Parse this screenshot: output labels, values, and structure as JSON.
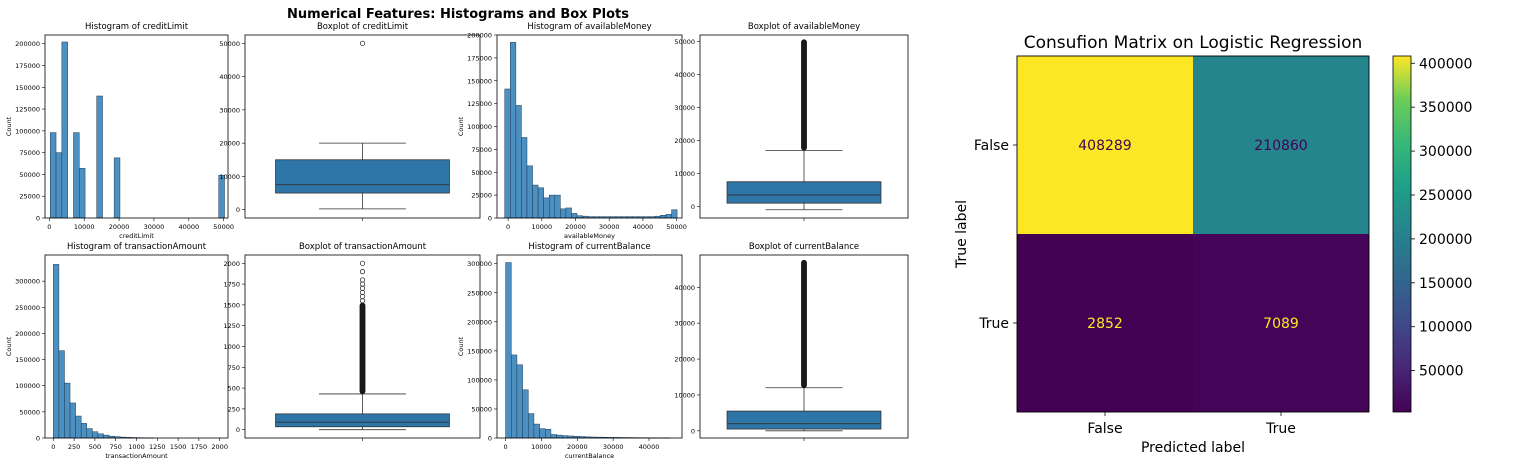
{
  "suptitle": "Numerical Features: Histograms and Box Plots",
  "colors": {
    "bar": "#4c8fc1",
    "bar_edge": "#1f3b55",
    "box": "#2e75a8",
    "box_edge": "#333333"
  },
  "chart_data": [
    {
      "type": "bar",
      "title": "Histogram of creditLimit",
      "xlabel": "creditLimit",
      "ylabel": "Count",
      "xlim": [
        -1250,
        51250
      ],
      "ylim": [
        0,
        210000
      ],
      "xticks": [
        0,
        10000,
        20000,
        30000,
        40000,
        50000
      ],
      "yticks": [
        0,
        25000,
        50000,
        75000,
        100000,
        125000,
        150000,
        175000,
        200000
      ],
      "bin_width": 1667,
      "bins": [
        [
          250,
          98000
        ],
        [
          1917,
          75000
        ],
        [
          3583,
          202000
        ],
        [
          6917,
          98000
        ],
        [
          8583,
          57000
        ],
        [
          13583,
          140000
        ],
        [
          18583,
          69000
        ],
        [
          48583,
          49000
        ]
      ]
    },
    {
      "type": "box",
      "title": "Boxplot of creditLimit",
      "ylim": [
        -2500,
        52500
      ],
      "yticks": [
        0,
        10000,
        20000,
        30000,
        40000,
        50000
      ],
      "whisker_low": 250,
      "q1": 5000,
      "median": 7500,
      "q3": 15000,
      "whisker_high": 20000,
      "outliers": [
        50000
      ]
    },
    {
      "type": "bar",
      "title": "Histogram of availableMoney",
      "xlabel": "availableMoney",
      "ylabel": "Count",
      "xlim": [
        -3300,
        51600
      ],
      "ylim": [
        0,
        200000
      ],
      "xticks": [
        0,
        10000,
        20000,
        30000,
        40000,
        50000
      ],
      "yticks": [
        0,
        25000,
        50000,
        75000,
        100000,
        125000,
        150000,
        175000,
        200000
      ],
      "bin_width": 1650,
      "bins": [
        [
          -1000,
          141000
        ],
        [
          650,
          192000
        ],
        [
          2300,
          123000
        ],
        [
          3950,
          88000
        ],
        [
          5600,
          57000
        ],
        [
          7250,
          36000
        ],
        [
          8900,
          33000
        ],
        [
          10550,
          22000
        ],
        [
          12200,
          25000
        ],
        [
          13850,
          25000
        ],
        [
          15500,
          10000
        ],
        [
          17150,
          11000
        ],
        [
          18800,
          5000
        ],
        [
          20450,
          2500
        ],
        [
          22100,
          2000
        ],
        [
          23750,
          1500
        ],
        [
          25400,
          1500
        ],
        [
          27050,
          1500
        ],
        [
          28700,
          1500
        ],
        [
          30350,
          1500
        ],
        [
          32000,
          1500
        ],
        [
          33650,
          1500
        ],
        [
          35300,
          1500
        ],
        [
          36950,
          1500
        ],
        [
          38600,
          1500
        ],
        [
          40250,
          1500
        ],
        [
          41900,
          1500
        ],
        [
          43550,
          2000
        ],
        [
          45200,
          3000
        ],
        [
          46850,
          4000
        ],
        [
          48500,
          9000
        ]
      ]
    },
    {
      "type": "box",
      "title": "Boxplot of availableMoney",
      "ylim": [
        -3500,
        52000
      ],
      "yticks": [
        0,
        10000,
        20000,
        30000,
        40000,
        50000
      ],
      "whisker_low": -1000,
      "q1": 1000,
      "median": 3500,
      "q3": 7500,
      "whisker_high": 17000,
      "outlier_range": [
        17000,
        50000
      ]
    },
    {
      "type": "bar",
      "title": "Histogram of transactionAmount",
      "xlabel": "transactionAmount",
      "ylabel": "Count",
      "xlim": [
        -100,
        2100
      ],
      "ylim": [
        0,
        350000
      ],
      "xticks": [
        0,
        250,
        500,
        750,
        1000,
        1250,
        1500,
        1750,
        2000
      ],
      "yticks": [
        0,
        50000,
        100000,
        150000,
        200000,
        250000,
        300000
      ],
      "bin_width": 67,
      "bins": [
        [
          0,
          332000
        ],
        [
          67,
          167000
        ],
        [
          134,
          105000
        ],
        [
          201,
          67000
        ],
        [
          268,
          42000
        ],
        [
          335,
          28000
        ],
        [
          402,
          18000
        ],
        [
          469,
          12000
        ],
        [
          536,
          8000
        ],
        [
          603,
          5500
        ],
        [
          670,
          3500
        ],
        [
          737,
          2500
        ],
        [
          804,
          1700
        ],
        [
          871,
          1200
        ],
        [
          938,
          900
        ],
        [
          1005,
          600
        ],
        [
          1072,
          400
        ],
        [
          1139,
          300
        ]
      ]
    },
    {
      "type": "box",
      "title": "Boxplot of transactionAmount",
      "ylim": [
        -100,
        2100
      ],
      "yticks": [
        0,
        250,
        500,
        750,
        1000,
        1250,
        1500,
        1750,
        2000
      ],
      "whisker_low": 0,
      "q1": 35,
      "median": 90,
      "q3": 190,
      "whisker_high": 430,
      "outlier_range": [
        430,
        1500
      ],
      "outliers": [
        1550,
        1600,
        1650,
        1700,
        1750,
        1800,
        1900,
        2000
      ]
    },
    {
      "type": "bar",
      "title": "Histogram of currentBalance",
      "xlabel": "currentBalance",
      "ylabel": "Count",
      "xlim": [
        -2400,
        49200
      ],
      "ylim": [
        0,
        315000
      ],
      "xticks": [
        0,
        10000,
        20000,
        30000,
        40000
      ],
      "yticks": [
        0,
        50000,
        100000,
        150000,
        200000,
        250000,
        300000
      ],
      "bin_width": 1580,
      "bins": [
        [
          0,
          302000
        ],
        [
          1580,
          143000
        ],
        [
          3160,
          126000
        ],
        [
          4740,
          83000
        ],
        [
          6320,
          42000
        ],
        [
          7900,
          24000
        ],
        [
          9480,
          16000
        ],
        [
          11060,
          15000
        ],
        [
          12640,
          6000
        ],
        [
          14220,
          5000
        ],
        [
          15800,
          4000
        ],
        [
          17380,
          3500
        ],
        [
          18960,
          3000
        ],
        [
          20540,
          2500
        ],
        [
          22120,
          2000
        ],
        [
          23700,
          1700
        ],
        [
          25280,
          1500
        ],
        [
          26860,
          1300
        ],
        [
          28440,
          1100
        ],
        [
          30020,
          1000
        ],
        [
          31600,
          900
        ],
        [
          33180,
          800
        ],
        [
          34760,
          700
        ],
        [
          36340,
          600
        ],
        [
          37920,
          500
        ],
        [
          39500,
          400
        ],
        [
          41080,
          400
        ],
        [
          42660,
          300
        ],
        [
          44240,
          300
        ]
      ]
    },
    {
      "type": "box",
      "title": "Boxplot of currentBalance",
      "ylim": [
        -2000,
        49000
      ],
      "yticks": [
        0,
        10000,
        20000,
        30000,
        40000
      ],
      "whisker_low": 0,
      "q1": 500,
      "median": 2000,
      "q3": 5500,
      "whisker_high": 12000,
      "outlier_range": [
        12000,
        47000
      ]
    },
    {
      "type": "heatmap",
      "title": "Consufion Matrix on Logistic Regression",
      "xlabel": "Predicted label",
      "ylabel": "True label",
      "x_categories": [
        "False",
        "True"
      ],
      "y_categories": [
        "False",
        "True"
      ],
      "values": [
        [
          408289,
          210860
        ],
        [
          2852,
          7089
        ]
      ],
      "colorbar_range": [
        2852,
        408289
      ],
      "colorbar_ticks": [
        "50000",
        "100000",
        "150000",
        "200000",
        "250000",
        "300000",
        "350000",
        "400000"
      ]
    }
  ]
}
